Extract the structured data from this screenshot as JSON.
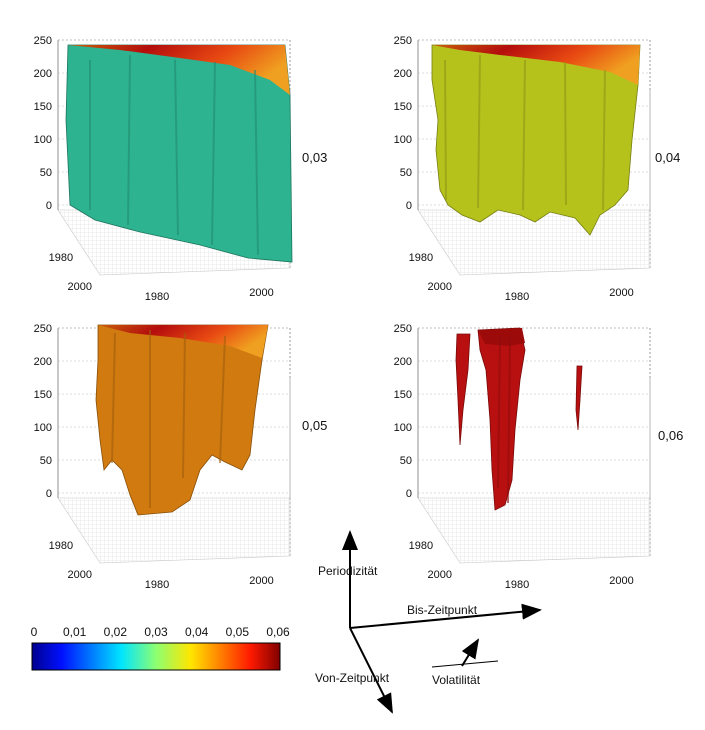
{
  "chart_data": [
    {
      "type": "surface3d",
      "isovalue_label": "0,03",
      "color": "#2db38f",
      "z_ticks": [
        "0",
        "50",
        "100",
        "150",
        "200",
        "250"
      ],
      "y_ticks": [
        "1980",
        "2000"
      ],
      "x_ticks": [
        "1980",
        "2000"
      ],
      "zlim": [
        0,
        250
      ]
    },
    {
      "type": "surface3d",
      "isovalue_label": "0,04",
      "color": "#b5c21c",
      "z_ticks": [
        "0",
        "50",
        "100",
        "150",
        "200",
        "250"
      ],
      "y_ticks": [
        "1980",
        "2000"
      ],
      "x_ticks": [
        "1980",
        "2000"
      ],
      "zlim": [
        0,
        250
      ]
    },
    {
      "type": "surface3d",
      "isovalue_label": "0,05",
      "color": "#d07a10",
      "z_ticks": [
        "0",
        "50",
        "100",
        "150",
        "200",
        "250"
      ],
      "y_ticks": [
        "1980",
        "2000"
      ],
      "x_ticks": [
        "1980",
        "2000"
      ],
      "zlim": [
        0,
        250
      ]
    },
    {
      "type": "surface3d",
      "isovalue_label": "0,06",
      "color": "#b81010",
      "z_ticks": [
        "0",
        "50",
        "100",
        "150",
        "200",
        "250"
      ],
      "y_ticks": [
        "1980",
        "2000"
      ],
      "x_ticks": [
        "1980",
        "2000"
      ],
      "zlim": [
        0,
        250
      ]
    }
  ],
  "colorbar": {
    "ticks": [
      "0",
      "0,01",
      "0,02",
      "0,03",
      "0,04",
      "0,05",
      "0,06"
    ],
    "range": [
      0,
      0.06
    ],
    "colormap": "jet"
  },
  "axis_legend": {
    "z_label": "Periodizität",
    "x_label": "Bis-Zeitpunkt",
    "y_label": "Von-Zeitpunkt",
    "c_label": "Volatilität"
  }
}
